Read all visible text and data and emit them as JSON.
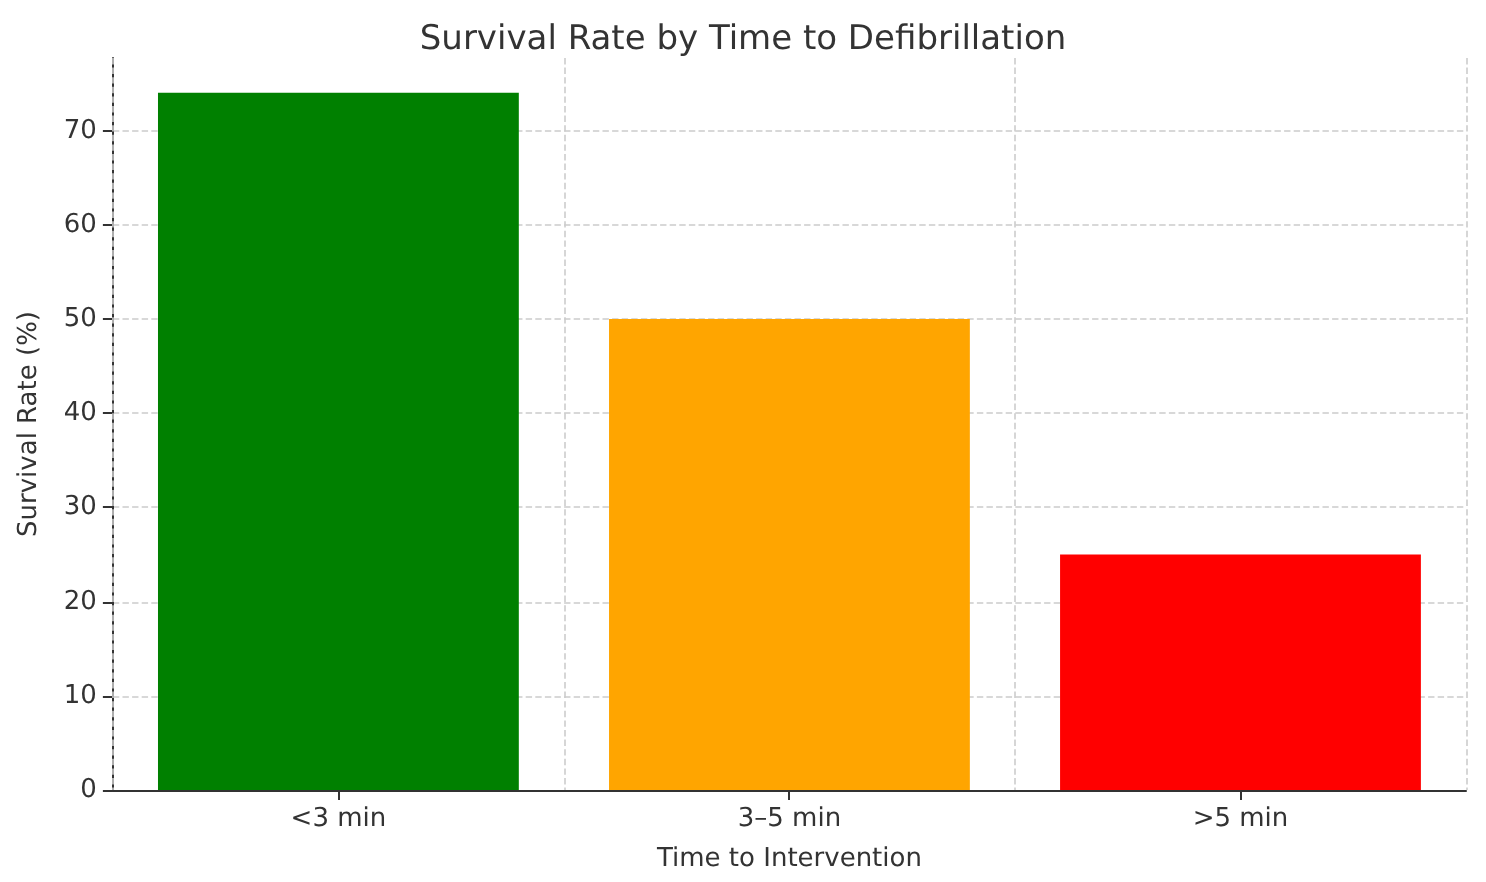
{
  "chart_data": {
    "type": "bar",
    "title": "Survival Rate by Time to Defibrillation",
    "xlabel": "Time to Intervention",
    "ylabel": "Survival Rate (%)",
    "categories": [
      "<3 min",
      "3–5 min",
      ">5 min"
    ],
    "values": [
      74,
      50,
      25
    ],
    "colors": [
      "#008000",
      "#ffa500",
      "#ff0000"
    ],
    "ylim": [
      0,
      77.7
    ],
    "yticks": [
      0,
      10,
      20,
      30,
      40,
      50,
      60,
      70
    ],
    "grid": true
  }
}
